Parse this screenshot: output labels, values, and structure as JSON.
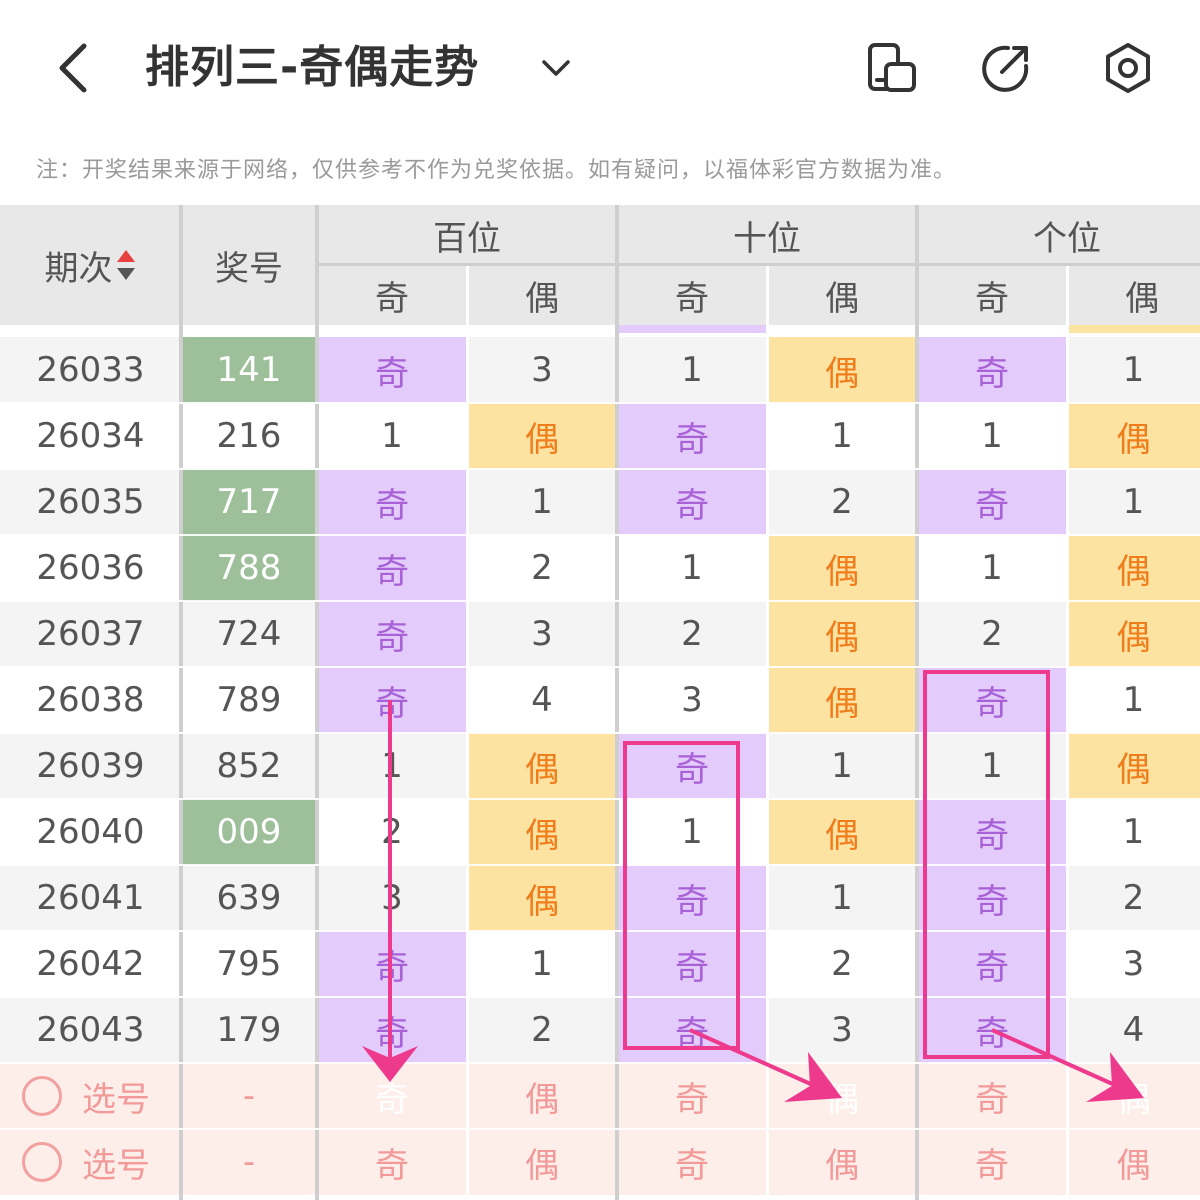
{
  "header": {
    "title": "排列三-奇偶走势",
    "icons": [
      "back-arrow-icon",
      "chevron-down-icon",
      "phone-toggle-icon",
      "share-icon",
      "settings-hex-icon"
    ]
  },
  "note": "注：开奖结果来源于网络，仅供参考不作为兑奖依据。如有疑问，以福体彩官方数据为准。",
  "table": {
    "col_issue": "期次",
    "col_number": "奖号",
    "groups": [
      "百位",
      "十位",
      "个位"
    ],
    "odd": "奇",
    "even": "偶",
    "rows": [
      {
        "issue": "26033",
        "number": "141",
        "highlight": true,
        "cells": [
          [
            "奇",
            "3"
          ],
          [
            "1",
            "偶"
          ],
          [
            "奇",
            "1"
          ]
        ]
      },
      {
        "issue": "26034",
        "number": "216",
        "highlight": false,
        "cells": [
          [
            "1",
            "偶"
          ],
          [
            "奇",
            "1"
          ],
          [
            "1",
            "偶"
          ]
        ]
      },
      {
        "issue": "26035",
        "number": "717",
        "highlight": true,
        "cells": [
          [
            "奇",
            "1"
          ],
          [
            "奇",
            "2"
          ],
          [
            "奇",
            "1"
          ]
        ]
      },
      {
        "issue": "26036",
        "number": "788",
        "highlight": true,
        "cells": [
          [
            "奇",
            "2"
          ],
          [
            "1",
            "偶"
          ],
          [
            "1",
            "偶"
          ]
        ]
      },
      {
        "issue": "26037",
        "number": "724",
        "highlight": false,
        "cells": [
          [
            "奇",
            "3"
          ],
          [
            "2",
            "偶"
          ],
          [
            "2",
            "偶"
          ]
        ]
      },
      {
        "issue": "26038",
        "number": "789",
        "highlight": false,
        "cells": [
          [
            "奇",
            "4"
          ],
          [
            "3",
            "偶"
          ],
          [
            "奇",
            "1"
          ]
        ]
      },
      {
        "issue": "26039",
        "number": "852",
        "highlight": false,
        "cells": [
          [
            "1",
            "偶"
          ],
          [
            "奇",
            "1"
          ],
          [
            "1",
            "偶"
          ]
        ]
      },
      {
        "issue": "26040",
        "number": "009",
        "highlight": true,
        "cells": [
          [
            "2",
            "偶"
          ],
          [
            "1",
            "偶"
          ],
          [
            "奇",
            "1"
          ]
        ]
      },
      {
        "issue": "26041",
        "number": "639",
        "highlight": false,
        "cells": [
          [
            "3",
            "偶"
          ],
          [
            "奇",
            "1"
          ],
          [
            "奇",
            "2"
          ]
        ]
      },
      {
        "issue": "26042",
        "number": "795",
        "highlight": false,
        "cells": [
          [
            "奇",
            "1"
          ],
          [
            "奇",
            "2"
          ],
          [
            "奇",
            "3"
          ]
        ]
      },
      {
        "issue": "26043",
        "number": "179",
        "highlight": false,
        "cells": [
          [
            "奇",
            "2"
          ],
          [
            "奇",
            "3"
          ],
          [
            "奇",
            "4"
          ]
        ]
      }
    ],
    "pick_rows": [
      {
        "label": "选号",
        "number": "-",
        "selected": [
          "odd",
          "even",
          "even"
        ]
      },
      {
        "label": "选号",
        "number": "-",
        "selected": []
      }
    ]
  },
  "colors": {
    "odd_bg": "#e3cbfb",
    "even_bg": "#fde3a1",
    "odd_text": "#a861d6",
    "even_text": "#f07d1c",
    "highlight_number_bg": "#9dbf9a",
    "selected_bg": "#f54a4a",
    "annotation": "#ee3a8c"
  }
}
